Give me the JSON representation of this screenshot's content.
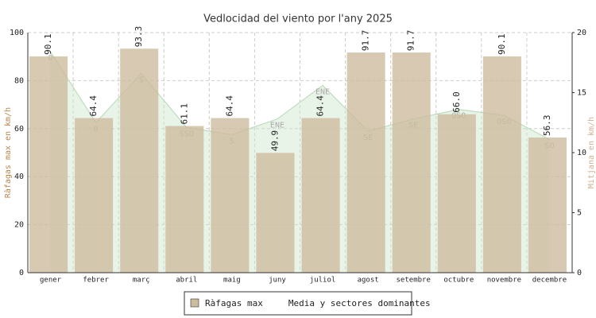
{
  "chart_data": {
    "type": "bar",
    "title": "Vedlocidad del viento por l'any 2025",
    "y_label": "Ràfagas max en km/h",
    "y2_label": "Mitjana en km/h",
    "categories": [
      "gener",
      "febrer",
      "març",
      "abril",
      "maig",
      "juny",
      "juliol",
      "agost",
      "setembre",
      "octubre",
      "novembre",
      "decembre"
    ],
    "series": [
      {
        "name": "Ràfagas max",
        "type": "bar",
        "color": "#cdbb9f",
        "values": [
          90.1,
          64.4,
          93.3,
          61.1,
          64.4,
          49.9,
          64.4,
          91.7,
          91.7,
          66.0,
          90.1,
          56.3
        ],
        "value_labels": [
          "90.1",
          "64.4",
          "93.3",
          "61.1",
          "64.4",
          "49.9",
          "64.4",
          "91.7",
          "91.7",
          "66.0",
          "90.1",
          "56.3"
        ]
      },
      {
        "name": "Media y sectores dominantes",
        "type": "area",
        "axis": "y2",
        "color": "#cfe6cf",
        "values": [
          18.4,
          12.5,
          16.6,
          12.1,
          11.5,
          12.8,
          15.6,
          11.8,
          12.8,
          13.6,
          13.1,
          11.1
        ],
        "directions": [
          "O",
          "O",
          "S",
          "SSO",
          "S",
          "ENE",
          "ENE",
          "SE",
          "SE",
          "OSO",
          "OSO",
          "SO"
        ]
      }
    ],
    "ylim": [
      0,
      100
    ],
    "yticks": [
      0,
      20,
      40,
      60,
      80,
      100
    ],
    "y2lim": [
      0,
      20
    ],
    "y2ticks": [
      0,
      5,
      10,
      15,
      20
    ],
    "grid": true,
    "legend": "bottom"
  }
}
